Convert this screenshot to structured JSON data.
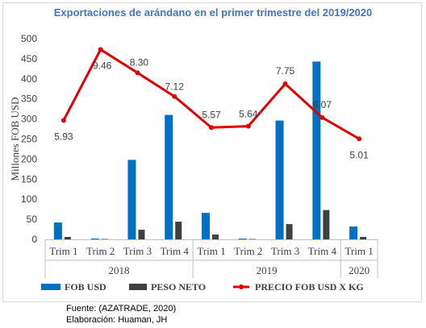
{
  "chart_data": {
    "type": "bar",
    "title": "Exportaciones de arándano en el primer trimestre del 2019/2020",
    "ylabel": "Millones FOB USD",
    "ylim": [
      0,
      500
    ],
    "yticks": [
      "0",
      "50",
      "100",
      "150",
      "200",
      "250",
      "300",
      "350",
      "400",
      "450",
      "500"
    ],
    "categories": [
      "Trim 1",
      "Trim 2",
      "Trim 3",
      "Trim 4",
      "Trim 1",
      "Trim 2",
      "Trim 3",
      "Trim 4",
      "Trim 1"
    ],
    "groups": [
      {
        "label": "2018",
        "count": 4
      },
      {
        "label": "2019",
        "count": 4
      },
      {
        "label": "2020",
        "count": 1
      }
    ],
    "series": [
      {
        "name": "FOB USD",
        "type": "bar",
        "color": "#0070c0",
        "values": [
          42,
          2,
          198,
          310,
          66,
          2,
          296,
          443,
          32
        ]
      },
      {
        "name": "PESO NETO",
        "type": "bar",
        "color": "#404040",
        "values": [
          6,
          1,
          24,
          44,
          12,
          1,
          38,
          73,
          6
        ]
      },
      {
        "name": "PRECIO FOB USD X KG",
        "type": "line",
        "color": "#e00000",
        "values": [
          5.93,
          9.46,
          8.3,
          7.12,
          5.57,
          5.64,
          7.75,
          6.07,
          5.01
        ],
        "labels": [
          "5.93",
          "9.46",
          "8.30",
          "7.12",
          "5.57",
          "5.64",
          "7.75",
          "6.07",
          "5.01"
        ],
        "ylim": [
          0,
          10
        ]
      }
    ],
    "grid": false,
    "legend": "bottom"
  },
  "footer": {
    "source": "Fuente: (AZATRADE, 2020)",
    "elaboration": "Elaboración: Huaman, JH"
  }
}
